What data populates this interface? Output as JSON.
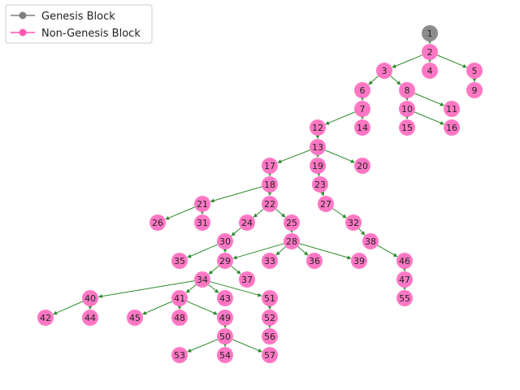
{
  "colors": {
    "genesis": "#8c8c8c",
    "non_genesis": "#ff77c4",
    "edge": "#2a8a2a",
    "legend_genesis_line": "#7f7f7f",
    "legend_non_genesis_line": "#ff55b4",
    "legend_border": "#cccccc"
  },
  "legend": {
    "genesis_label": "Genesis Block",
    "non_genesis_label": "Non-Genesis Block"
  },
  "nodes": [
    {
      "id": 1,
      "label": "1",
      "genesis": true
    },
    {
      "id": 2,
      "label": "2"
    },
    {
      "id": 3,
      "label": "3"
    },
    {
      "id": 4,
      "label": "4"
    },
    {
      "id": 5,
      "label": "5"
    },
    {
      "id": 6,
      "label": "6"
    },
    {
      "id": 7,
      "label": "7"
    },
    {
      "id": 8,
      "label": "8"
    },
    {
      "id": 9,
      "label": "9"
    },
    {
      "id": 10,
      "label": "10"
    },
    {
      "id": 11,
      "label": "11"
    },
    {
      "id": 12,
      "label": "12"
    },
    {
      "id": 13,
      "label": "13"
    },
    {
      "id": 14,
      "label": "14"
    },
    {
      "id": 15,
      "label": "15"
    },
    {
      "id": 16,
      "label": "16"
    },
    {
      "id": 17,
      "label": "17"
    },
    {
      "id": 18,
      "label": "18"
    },
    {
      "id": 19,
      "label": "19"
    },
    {
      "id": 20,
      "label": "20"
    },
    {
      "id": 21,
      "label": "21"
    },
    {
      "id": 22,
      "label": "22"
    },
    {
      "id": 23,
      "label": "23"
    },
    {
      "id": 24,
      "label": "24"
    },
    {
      "id": 25,
      "label": "25"
    },
    {
      "id": 26,
      "label": "26"
    },
    {
      "id": 27,
      "label": "27"
    },
    {
      "id": 28,
      "label": "28"
    },
    {
      "id": 29,
      "label": "29"
    },
    {
      "id": 30,
      "label": "30"
    },
    {
      "id": 31,
      "label": "31"
    },
    {
      "id": 32,
      "label": "32"
    },
    {
      "id": 33,
      "label": "33"
    },
    {
      "id": 34,
      "label": "34"
    },
    {
      "id": 35,
      "label": "35"
    },
    {
      "id": 36,
      "label": "36"
    },
    {
      "id": 37,
      "label": "37"
    },
    {
      "id": 38,
      "label": "38"
    },
    {
      "id": 39,
      "label": "39"
    },
    {
      "id": 40,
      "label": "40"
    },
    {
      "id": 41,
      "label": "41"
    },
    {
      "id": 42,
      "label": "42"
    },
    {
      "id": 43,
      "label": "43"
    },
    {
      "id": 44,
      "label": "44"
    },
    {
      "id": 45,
      "label": "45"
    },
    {
      "id": 46,
      "label": "46"
    },
    {
      "id": 47,
      "label": "47"
    },
    {
      "id": 48,
      "label": "48"
    },
    {
      "id": 49,
      "label": "49"
    },
    {
      "id": 50,
      "label": "50"
    },
    {
      "id": 51,
      "label": "51"
    },
    {
      "id": 52,
      "label": "52"
    },
    {
      "id": 53,
      "label": "53"
    },
    {
      "id": 54,
      "label": "54"
    },
    {
      "id": 55,
      "label": "55"
    },
    {
      "id": 56,
      "label": "56"
    },
    {
      "id": 57,
      "label": "57"
    }
  ],
  "edges": [
    [
      1,
      2
    ],
    [
      2,
      3
    ],
    [
      2,
      4
    ],
    [
      2,
      5
    ],
    [
      5,
      9
    ],
    [
      3,
      6
    ],
    [
      3,
      8
    ],
    [
      6,
      7
    ],
    [
      7,
      12
    ],
    [
      7,
      14
    ],
    [
      8,
      10
    ],
    [
      8,
      11
    ],
    [
      10,
      15
    ],
    [
      10,
      16
    ],
    [
      12,
      13
    ],
    [
      13,
      17
    ],
    [
      13,
      19
    ],
    [
      13,
      20
    ],
    [
      17,
      18
    ],
    [
      19,
      23
    ],
    [
      23,
      27
    ],
    [
      27,
      32
    ],
    [
      32,
      38
    ],
    [
      38,
      46
    ],
    [
      46,
      47
    ],
    [
      47,
      55
    ],
    [
      18,
      21
    ],
    [
      18,
      22
    ],
    [
      21,
      26
    ],
    [
      21,
      31
    ],
    [
      22,
      24
    ],
    [
      22,
      25
    ],
    [
      24,
      30
    ],
    [
      25,
      28
    ],
    [
      30,
      35
    ],
    [
      30,
      29
    ],
    [
      28,
      29
    ],
    [
      28,
      33
    ],
    [
      28,
      36
    ],
    [
      28,
      39
    ],
    [
      29,
      34
    ],
    [
      29,
      37
    ],
    [
      34,
      40
    ],
    [
      34,
      41
    ],
    [
      34,
      43
    ],
    [
      34,
      51
    ],
    [
      40,
      42
    ],
    [
      40,
      44
    ],
    [
      41,
      45
    ],
    [
      41,
      48
    ],
    [
      41,
      49
    ],
    [
      49,
      50
    ],
    [
      50,
      53
    ],
    [
      50,
      54
    ],
    [
      50,
      57
    ],
    [
      51,
      52
    ],
    [
      52,
      56
    ]
  ]
}
